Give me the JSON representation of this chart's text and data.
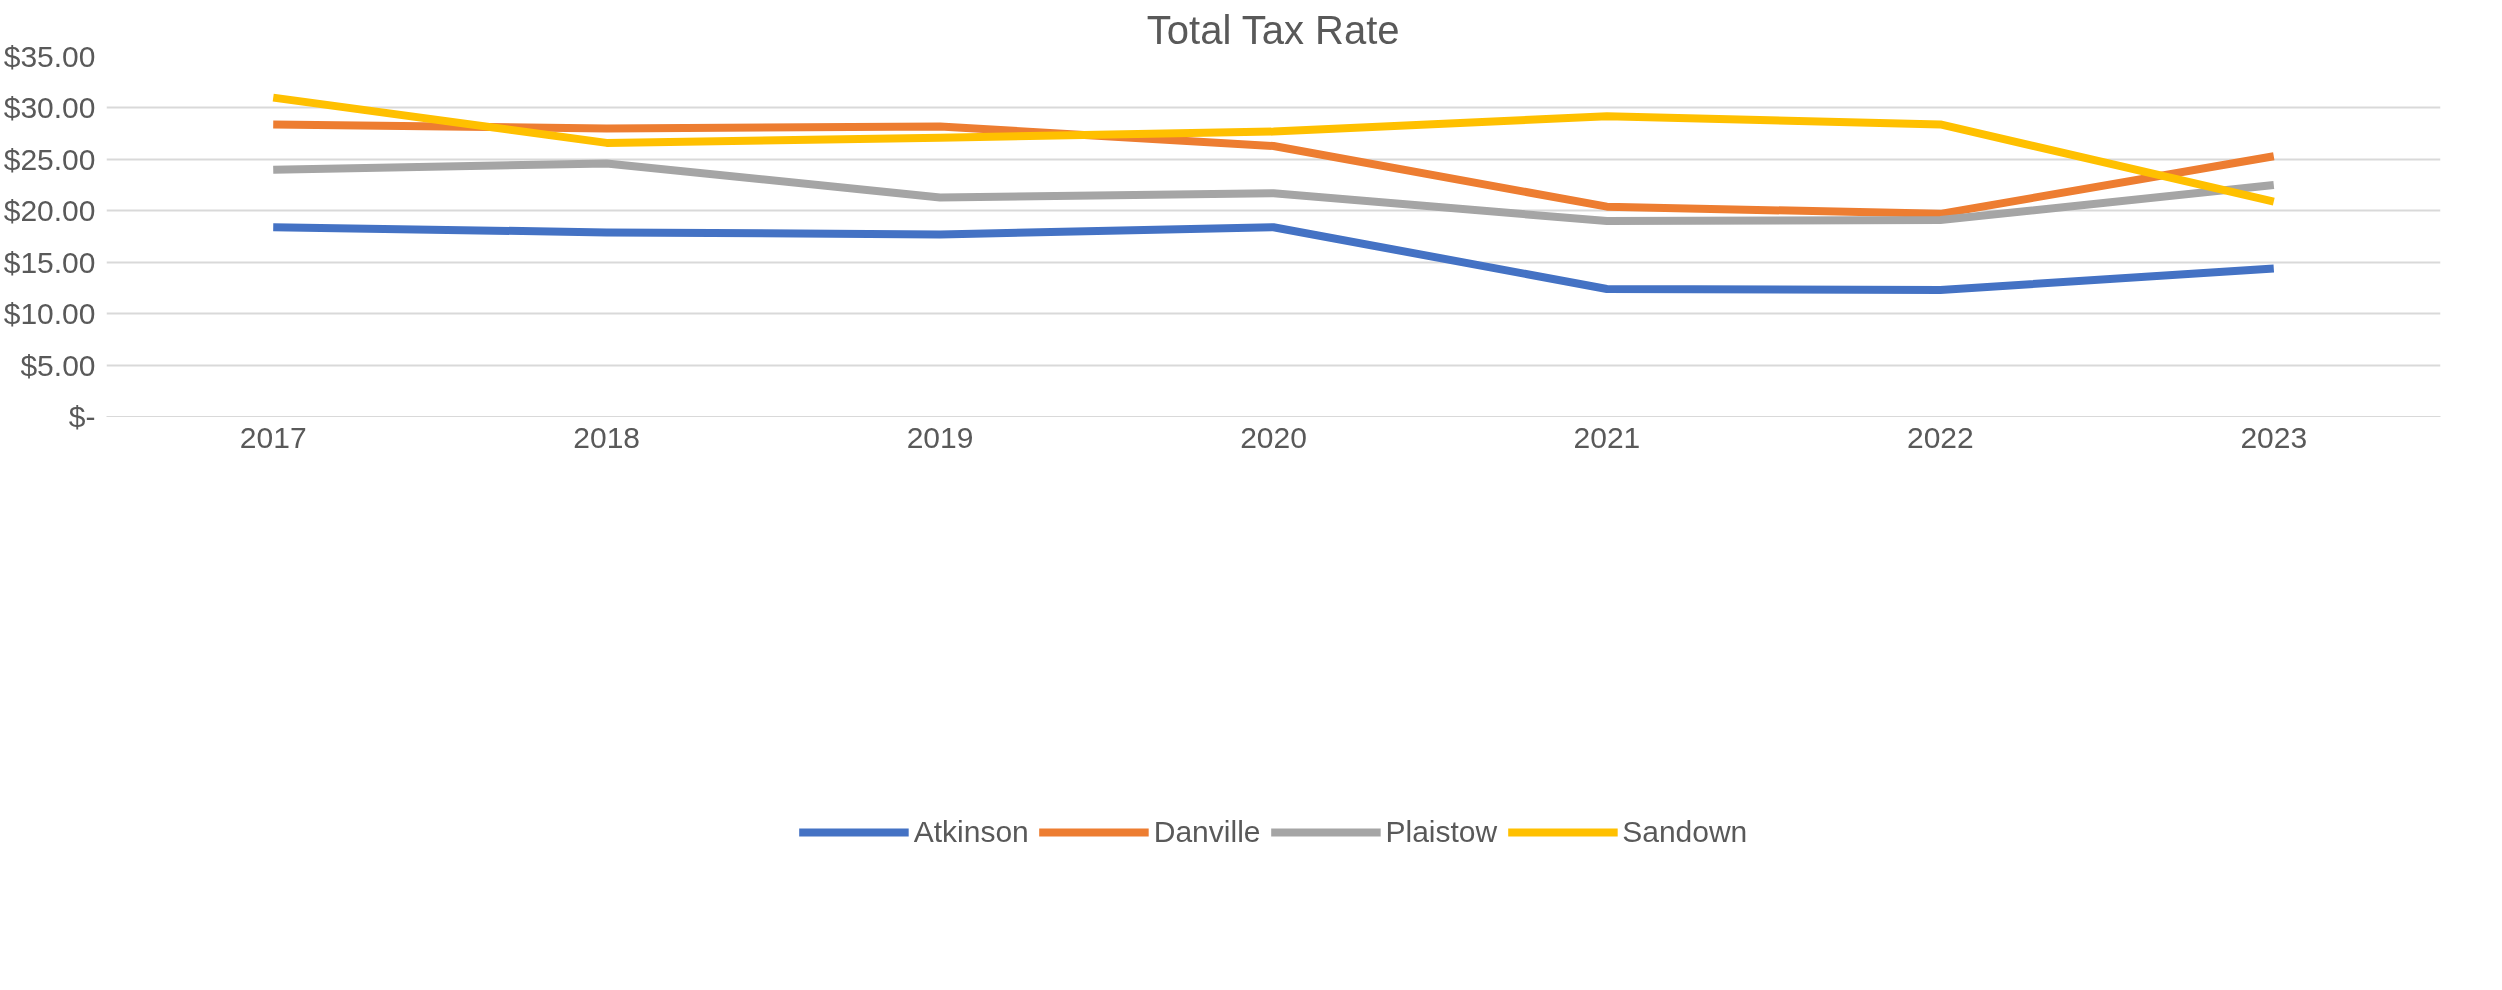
{
  "chart_data": {
    "type": "line",
    "title": "Total Tax Rate",
    "categories": [
      "2017",
      "2018",
      "2019",
      "2020",
      "2021",
      "2022",
      "2023"
    ],
    "series": [
      {
        "name": "Atkinson",
        "color": "#4472c4",
        "values": [
          18.4,
          17.9,
          17.7,
          18.4,
          12.4,
          12.3,
          14.4
        ]
      },
      {
        "name": "Danville",
        "color": "#ed7d31",
        "values": [
          28.4,
          28.0,
          28.2,
          26.3,
          20.4,
          19.7,
          25.3
        ]
      },
      {
        "name": "Plaistow",
        "color": "#a5a5a5",
        "values": [
          24.0,
          24.6,
          21.3,
          21.7,
          19.0,
          19.1,
          22.5
        ]
      },
      {
        "name": "Sandown",
        "color": "#ffc000",
        "values": [
          31.0,
          26.6,
          27.1,
          27.7,
          29.2,
          28.4,
          20.9
        ]
      }
    ],
    "ylim": [
      0,
      35
    ],
    "yticks": [
      {
        "value": 0,
        "label": "$-"
      },
      {
        "value": 5,
        "label": "$5.00"
      },
      {
        "value": 10,
        "label": "$10.00"
      },
      {
        "value": 15,
        "label": "$15.00"
      },
      {
        "value": 20,
        "label": "$20.00"
      },
      {
        "value": 25,
        "label": "$25.00"
      },
      {
        "value": 30,
        "label": "$30.00"
      },
      {
        "value": 35,
        "label": "$35.00"
      }
    ],
    "grid": "y",
    "legend": "bottom",
    "marker": "none",
    "line_style": "solid"
  }
}
